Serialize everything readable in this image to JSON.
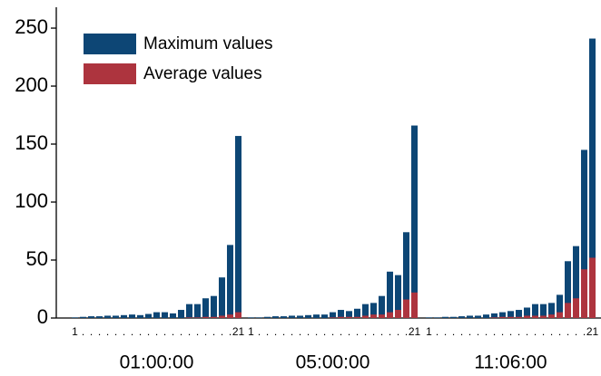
{
  "chart_data": {
    "type": "bar",
    "ylim": [
      0,
      268
    ],
    "yticks": [
      0,
      50,
      100,
      150,
      200,
      250
    ],
    "legend": "upper left",
    "groups": [
      "01:00:00",
      "05:00:00",
      "11:06:00"
    ],
    "categories": [
      "1",
      ".",
      ".",
      ".",
      ".",
      ".",
      ".",
      ".",
      ".",
      ".",
      ".",
      ".",
      ".",
      ".",
      ".",
      ".",
      ".",
      ".",
      ".",
      ".",
      "21",
      "1",
      ".",
      ".",
      ".",
      ".",
      ".",
      ".",
      ".",
      ".",
      ".",
      ".",
      ".",
      ".",
      ".",
      ".",
      ".",
      ".",
      ".",
      ".",
      ".",
      "21",
      "1",
      ".",
      ".",
      ".",
      ".",
      ".",
      ".",
      ".",
      ".",
      ".",
      ".",
      ".",
      ".",
      ".",
      ".",
      ".",
      ".",
      ".",
      ".",
      ".",
      "21"
    ],
    "series": [
      {
        "name": "Maximum values",
        "color": "#0d4675",
        "values": [
          0.5,
          1,
          1.5,
          1.5,
          2,
          2,
          2.5,
          3,
          2.5,
          3.5,
          5,
          5,
          4,
          7,
          12,
          12,
          17,
          19,
          35,
          63,
          157,
          0.5,
          0.5,
          1,
          1.5,
          1.5,
          2,
          2,
          2.5,
          3,
          3,
          5,
          7,
          6,
          8,
          12,
          13,
          19,
          40,
          37,
          74,
          166,
          0.5,
          0.5,
          1,
          1,
          1.5,
          2,
          2,
          3,
          4,
          5,
          6,
          7,
          9,
          12,
          12,
          13,
          20,
          49,
          62,
          145,
          241
        ]
      },
      {
        "name": "Average values",
        "color": "#ad343e",
        "values": [
          0,
          0,
          0,
          0,
          0,
          0,
          0,
          0,
          0,
          0,
          0,
          0,
          0,
          0,
          0.5,
          0.5,
          1,
          1,
          2,
          3,
          5,
          0,
          0,
          0,
          0,
          0,
          0,
          0,
          0,
          0,
          0,
          0.5,
          1,
          1,
          1,
          2,
          3,
          3,
          5,
          7,
          16,
          22,
          0,
          0,
          0,
          0,
          0,
          0,
          0,
          0,
          0.5,
          1,
          1,
          1,
          2,
          2,
          2,
          3,
          5,
          13,
          17,
          42,
          52
        ]
      }
    ]
  }
}
